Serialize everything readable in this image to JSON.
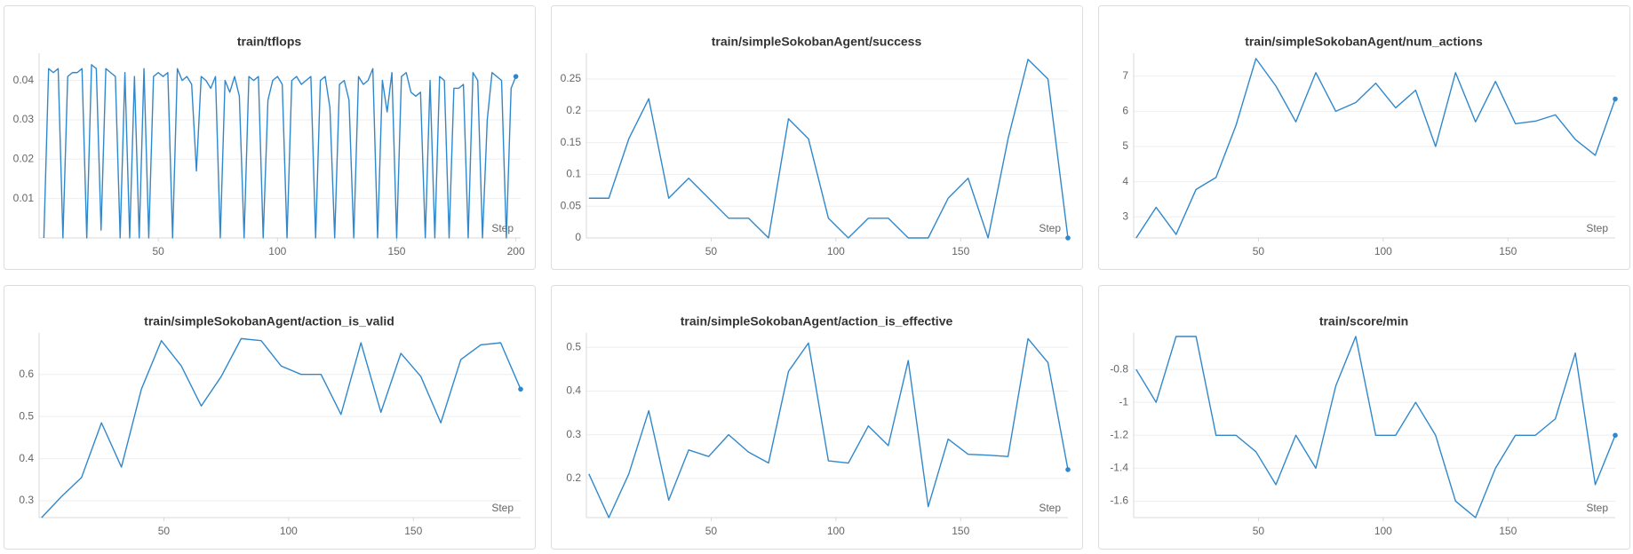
{
  "chart_data": [
    {
      "type": "line",
      "title": "train/tflops",
      "xlabel": "Step",
      "color": "#3088cc",
      "xlim": [
        0,
        202
      ],
      "ylim": [
        0,
        0.046
      ],
      "xticks": [
        50,
        100,
        150,
        200
      ],
      "yticks": [
        0.01,
        0.02,
        0.03,
        0.04
      ],
      "grid": true,
      "x": [
        2,
        4,
        6,
        8,
        10,
        12,
        14,
        16,
        18,
        20,
        22,
        24,
        26,
        28,
        30,
        32,
        34,
        36,
        38,
        40,
        42,
        44,
        46,
        48,
        50,
        52,
        54,
        56,
        58,
        60,
        62,
        64,
        66,
        68,
        70,
        72,
        74,
        76,
        78,
        80,
        82,
        84,
        86,
        88,
        90,
        92,
        94,
        96,
        98,
        100,
        102,
        104,
        106,
        108,
        110,
        112,
        114,
        116,
        118,
        120,
        122,
        124,
        126,
        128,
        130,
        132,
        134,
        136,
        138,
        140,
        142,
        144,
        146,
        148,
        150,
        152,
        154,
        156,
        158,
        160,
        162,
        164,
        166,
        168,
        170,
        172,
        174,
        176,
        178,
        180,
        182,
        184,
        186,
        188,
        190,
        192,
        194,
        196,
        198,
        200
      ],
      "values": [
        0,
        0.043,
        0.042,
        0.043,
        0,
        0.041,
        0.042,
        0.042,
        0.043,
        0,
        0.044,
        0.043,
        0.002,
        0.043,
        0.042,
        0.041,
        0,
        0.042,
        0,
        0.041,
        0,
        0.043,
        0,
        0.041,
        0.042,
        0.041,
        0.042,
        0,
        0.043,
        0.04,
        0.041,
        0.039,
        0.017,
        0.041,
        0.04,
        0.038,
        0.041,
        0,
        0.04,
        0.037,
        0.041,
        0.036,
        0,
        0.041,
        0.04,
        0.041,
        0,
        0.035,
        0.04,
        0.041,
        0.039,
        0,
        0.04,
        0.041,
        0.039,
        0.04,
        0.041,
        0,
        0.04,
        0.041,
        0.033,
        0,
        0.039,
        0.04,
        0.035,
        0,
        0.041,
        0.039,
        0.04,
        0.043,
        0,
        0.04,
        0.032,
        0.042,
        0,
        0.041,
        0.042,
        0.037,
        0.036,
        0.037,
        0,
        0.04,
        0,
        0.041,
        0.04,
        0,
        0.038,
        0.038,
        0.039,
        0,
        0.042,
        0.04,
        0,
        0.03,
        0.042,
        0.041,
        0.04,
        0,
        0.038,
        0.041
      ]
    },
    {
      "type": "line",
      "title": "train/simpleSokobanAgent/success",
      "xlabel": "Step",
      "color": "#3088cc",
      "xlim": [
        0,
        193
      ],
      "ylim": [
        0,
        0.285
      ],
      "xticks": [
        50,
        100,
        150
      ],
      "yticks": [
        0,
        0.05,
        0.1,
        0.15,
        0.2,
        0.25
      ],
      "grid": true,
      "x": [
        1,
        9,
        17,
        25,
        33,
        41,
        49,
        57,
        65,
        73,
        81,
        89,
        97,
        105,
        113,
        121,
        129,
        137,
        145,
        153,
        161,
        169,
        177,
        185,
        193
      ],
      "values": [
        0.0625,
        0.0625,
        0.156,
        0.219,
        0.0625,
        0.094,
        0.0625,
        0.031,
        0.031,
        0,
        0.1875,
        0.156,
        0.031,
        0,
        0.031,
        0.031,
        0,
        0,
        0.0625,
        0.094,
        0,
        0.156,
        0.281,
        0.25,
        0
      ]
    },
    {
      "type": "line",
      "title": "train/simpleSokobanAgent/num_actions",
      "xlabel": "Step",
      "color": "#3088cc",
      "xlim": [
        0,
        193
      ],
      "ylim": [
        2.4,
        7.55
      ],
      "xticks": [
        50,
        100,
        150
      ],
      "yticks": [
        3,
        4,
        5,
        6,
        7
      ],
      "grid": true,
      "x": [
        1,
        9,
        17,
        25,
        33,
        41,
        49,
        57,
        65,
        73,
        81,
        89,
        97,
        105,
        113,
        121,
        129,
        137,
        145,
        153,
        161,
        169,
        177,
        185,
        193
      ],
      "values": [
        2.4,
        3.27,
        2.5,
        3.78,
        4.12,
        5.6,
        7.5,
        6.72,
        5.7,
        7.1,
        6.0,
        6.25,
        6.8,
        6.1,
        6.6,
        5.0,
        7.1,
        5.7,
        6.85,
        5.65,
        5.72,
        5.9,
        5.2,
        4.75,
        6.35
      ]
    },
    {
      "type": "line",
      "title": "train/simpleSokobanAgent/action_is_valid",
      "xlabel": "Step",
      "color": "#3088cc",
      "xlim": [
        0,
        193
      ],
      "ylim": [
        0.26,
        0.69
      ],
      "xticks": [
        50,
        100,
        150
      ],
      "yticks": [
        0.3,
        0.4,
        0.5,
        0.6
      ],
      "grid": true,
      "x": [
        1,
        9,
        17,
        25,
        33,
        41,
        49,
        57,
        65,
        73,
        81,
        89,
        97,
        105,
        113,
        121,
        129,
        137,
        145,
        153,
        161,
        169,
        177,
        185,
        193
      ],
      "values": [
        0.26,
        0.31,
        0.355,
        0.485,
        0.38,
        0.565,
        0.68,
        0.62,
        0.525,
        0.595,
        0.685,
        0.68,
        0.62,
        0.6,
        0.6,
        0.505,
        0.675,
        0.51,
        0.65,
        0.595,
        0.485,
        0.635,
        0.67,
        0.675,
        0.565
      ]
    },
    {
      "type": "line",
      "title": "train/simpleSokobanAgent/action_is_effective",
      "xlabel": "Step",
      "color": "#3088cc",
      "xlim": [
        0,
        193
      ],
      "ylim": [
        0.11,
        0.525
      ],
      "xticks": [
        50,
        100,
        150
      ],
      "yticks": [
        0.2,
        0.3,
        0.4,
        0.5
      ],
      "grid": true,
      "x": [
        1,
        9,
        17,
        25,
        33,
        41,
        49,
        57,
        65,
        73,
        81,
        89,
        97,
        105,
        113,
        121,
        129,
        137,
        145,
        153,
        161,
        169,
        177,
        185,
        193
      ],
      "values": [
        0.21,
        0.11,
        0.21,
        0.355,
        0.15,
        0.265,
        0.25,
        0.3,
        0.26,
        0.235,
        0.445,
        0.51,
        0.24,
        0.235,
        0.32,
        0.275,
        0.47,
        0.135,
        0.29,
        0.255,
        0.253,
        0.25,
        0.52,
        0.465,
        0.22
      ]
    },
    {
      "type": "line",
      "title": "train/score/min",
      "xlabel": "Step",
      "color": "#3088cc",
      "xlim": [
        0,
        193
      ],
      "ylim": [
        -1.7,
        -0.6
      ],
      "xticks": [
        50,
        100,
        150
      ],
      "yticks": [
        -1.6,
        -1.4,
        -1.2,
        -1,
        -0.8
      ],
      "grid": true,
      "x": [
        1,
        9,
        17,
        25,
        33,
        41,
        49,
        57,
        65,
        73,
        81,
        89,
        97,
        105,
        113,
        121,
        129,
        137,
        145,
        153,
        161,
        169,
        177,
        185,
        193
      ],
      "values": [
        -0.8,
        -1.0,
        -0.6,
        -0.6,
        -1.2,
        -1.2,
        -1.3,
        -1.5,
        -1.2,
        -1.4,
        -0.9,
        -0.6,
        -1.2,
        -1.2,
        -1.0,
        -1.2,
        -1.6,
        -1.7,
        -1.4,
        -1.2,
        -1.2,
        -1.1,
        -0.7,
        -1.5,
        -1.2
      ]
    }
  ]
}
